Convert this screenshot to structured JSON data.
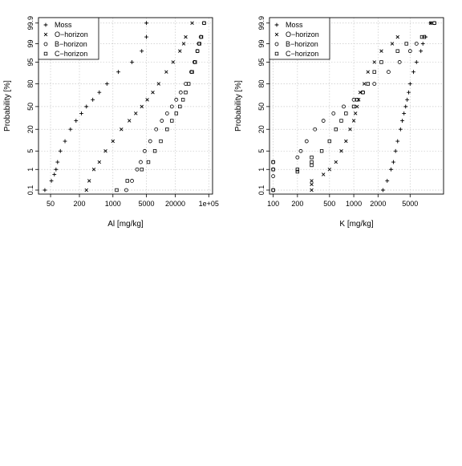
{
  "chart_data": [
    {
      "type": "scatter",
      "title": "",
      "xlabel": "Al [mg/kg]",
      "ylabel": "Probability [%]",
      "xscale": "log",
      "yscale": "normal-probability",
      "xlim": [
        28,
        120000
      ],
      "ylim": [
        0.06,
        99.95
      ],
      "xticks": [
        50,
        200,
        1000,
        5000,
        20000,
        100000
      ],
      "xtick_labels": [
        "50",
        "200",
        "1000",
        "5000",
        "20000",
        "1e+05"
      ],
      "yticks": [
        0.1,
        1,
        5,
        20,
        50,
        80,
        95,
        99,
        99.9
      ],
      "ytick_labels": [
        "0.1",
        "1",
        "5",
        "20",
        "50",
        "80",
        "95",
        "99",
        "99.9"
      ],
      "grid": true,
      "legend": {
        "position": "top-left",
        "entries": [
          "Moss",
          "O−horizon",
          "B−horizon",
          "C−horizon"
        ]
      },
      "series": [
        {
          "name": "Moss",
          "marker": "plus",
          "points": [
            [
              38,
              0.1
            ],
            [
              52,
              0.3
            ],
            [
              60,
              0.6
            ],
            [
              65,
              1
            ],
            [
              70,
              2
            ],
            [
              80,
              5
            ],
            [
              100,
              10
            ],
            [
              130,
              20
            ],
            [
              170,
              30
            ],
            [
              220,
              40
            ],
            [
              280,
              50
            ],
            [
              380,
              60
            ],
            [
              520,
              70
            ],
            [
              750,
              80
            ],
            [
              1300,
              90
            ],
            [
              2500,
              95
            ],
            [
              4000,
              98
            ],
            [
              5000,
              99.5
            ],
            [
              5000,
              99.9
            ]
          ]
        },
        {
          "name": "O−horizon",
          "marker": "x",
          "points": [
            [
              280,
              0.1
            ],
            [
              320,
              0.3
            ],
            [
              400,
              1
            ],
            [
              520,
              2
            ],
            [
              700,
              5
            ],
            [
              1000,
              10
            ],
            [
              1500,
              20
            ],
            [
              2200,
              30
            ],
            [
              3000,
              40
            ],
            [
              4000,
              50
            ],
            [
              5200,
              60
            ],
            [
              6800,
              70
            ],
            [
              9000,
              80
            ],
            [
              13000,
              90
            ],
            [
              18000,
              95
            ],
            [
              25000,
              98
            ],
            [
              30000,
              99
            ],
            [
              33000,
              99.5
            ],
            [
              45000,
              99.9
            ]
          ]
        },
        {
          "name": "B−horizon",
          "marker": "circle",
          "points": [
            [
              1900,
              0.1
            ],
            [
              2500,
              0.3
            ],
            [
              3200,
              1
            ],
            [
              3800,
              2
            ],
            [
              4600,
              5
            ],
            [
              6000,
              10
            ],
            [
              8000,
              20
            ],
            [
              10500,
              30
            ],
            [
              13500,
              40
            ],
            [
              17000,
              50
            ],
            [
              21000,
              60
            ],
            [
              26000,
              70
            ],
            [
              33000,
              80
            ],
            [
              43000,
              90
            ],
            [
              50000,
              95
            ],
            [
              58000,
              98
            ],
            [
              62000,
              99
            ],
            [
              68000,
              99.5
            ],
            [
              80000,
              99.9
            ]
          ]
        },
        {
          "name": "C−horizon",
          "marker": "square",
          "points": [
            [
              1200,
              0.1
            ],
            [
              2000,
              0.3
            ],
            [
              4000,
              1
            ],
            [
              5500,
              2
            ],
            [
              7500,
              5
            ],
            [
              10000,
              10
            ],
            [
              13500,
              20
            ],
            [
              17000,
              30
            ],
            [
              21000,
              40
            ],
            [
              25000,
              50
            ],
            [
              29000,
              60
            ],
            [
              33000,
              70
            ],
            [
              38000,
              80
            ],
            [
              45000,
              90
            ],
            [
              52000,
              95
            ],
            [
              58000,
              98
            ],
            [
              64000,
              99
            ],
            [
              70000,
              99.5
            ],
            [
              80000,
              99.9
            ]
          ]
        }
      ]
    },
    {
      "type": "scatter",
      "title": "",
      "xlabel": "K [mg/kg]",
      "ylabel": "Probability [%]",
      "xscale": "log",
      "yscale": "normal-probability",
      "xlim": [
        90,
        13000
      ],
      "ylim": [
        0.06,
        99.95
      ],
      "xticks": [
        100,
        200,
        500,
        1000,
        2000,
        5000
      ],
      "xtick_labels": [
        "100",
        "200",
        "500",
        "1000",
        "2000",
        "5000"
      ],
      "yticks": [
        0.1,
        1,
        5,
        20,
        50,
        80,
        95,
        99,
        99.9
      ],
      "ytick_labels": [
        "0.1",
        "1",
        "5",
        "20",
        "50",
        "80",
        "95",
        "99",
        "99.9"
      ],
      "grid": true,
      "legend": {
        "position": "top-left",
        "entries": [
          "Moss",
          "O−horizon",
          "B−horizon",
          "C−horizon"
        ]
      },
      "series": [
        {
          "name": "Moss",
          "marker": "plus",
          "points": [
            [
              2300,
              0.1
            ],
            [
              2600,
              0.3
            ],
            [
              2900,
              1
            ],
            [
              3100,
              2
            ],
            [
              3300,
              5
            ],
            [
              3500,
              10
            ],
            [
              3800,
              20
            ],
            [
              4000,
              30
            ],
            [
              4200,
              40
            ],
            [
              4400,
              50
            ],
            [
              4600,
              60
            ],
            [
              4800,
              70
            ],
            [
              5000,
              80
            ],
            [
              5500,
              90
            ],
            [
              6000,
              95
            ],
            [
              6800,
              98
            ],
            [
              7200,
              99
            ],
            [
              7800,
              99.5
            ],
            [
              9000,
              99.9
            ]
          ]
        },
        {
          "name": "O−horizon",
          "marker": "x",
          "points": [
            [
              300,
              0.1
            ],
            [
              300,
              0.2
            ],
            [
              300,
              0.3
            ],
            [
              420,
              0.6
            ],
            [
              500,
              1
            ],
            [
              600,
              2
            ],
            [
              700,
              5
            ],
            [
              800,
              10
            ],
            [
              900,
              20
            ],
            [
              1000,
              30
            ],
            [
              1050,
              40
            ],
            [
              1100,
              50
            ],
            [
              1150,
              60
            ],
            [
              1200,
              70
            ],
            [
              1350,
              80
            ],
            [
              1500,
              90
            ],
            [
              1800,
              95
            ],
            [
              2200,
              98
            ],
            [
              3000,
              99
            ],
            [
              3500,
              99.5
            ],
            [
              9000,
              99.9
            ]
          ]
        },
        {
          "name": "B−horizon",
          "marker": "circle",
          "points": [
            [
              100,
              0.1
            ],
            [
              100,
              0.5
            ],
            [
              100,
              1
            ],
            [
              100,
              2
            ],
            [
              200,
              3
            ],
            [
              220,
              5
            ],
            [
              260,
              10
            ],
            [
              330,
              20
            ],
            [
              420,
              30
            ],
            [
              560,
              40
            ],
            [
              750,
              50
            ],
            [
              1000,
              60
            ],
            [
              1300,
              70
            ],
            [
              1800,
              80
            ],
            [
              2700,
              90
            ],
            [
              3700,
              95
            ],
            [
              5000,
              98
            ],
            [
              6000,
              99
            ],
            [
              7500,
              99.5
            ],
            [
              10000,
              99.9
            ]
          ]
        },
        {
          "name": "C−horizon",
          "marker": "square",
          "points": [
            [
              100,
              0.1
            ],
            [
              100,
              1
            ],
            [
              100,
              2
            ],
            [
              200,
              0.8
            ],
            [
              200,
              1
            ],
            [
              300,
              1.5
            ],
            [
              300,
              2
            ],
            [
              300,
              3
            ],
            [
              400,
              5
            ],
            [
              500,
              10
            ],
            [
              600,
              20
            ],
            [
              700,
              30
            ],
            [
              800,
              40
            ],
            [
              1000,
              50
            ],
            [
              1100,
              60
            ],
            [
              1300,
              70
            ],
            [
              1500,
              80
            ],
            [
              1800,
              90
            ],
            [
              2200,
              95
            ],
            [
              3500,
              98
            ],
            [
              4500,
              99
            ],
            [
              7000,
              99.5
            ],
            [
              10000,
              99.9
            ]
          ]
        }
      ]
    }
  ]
}
